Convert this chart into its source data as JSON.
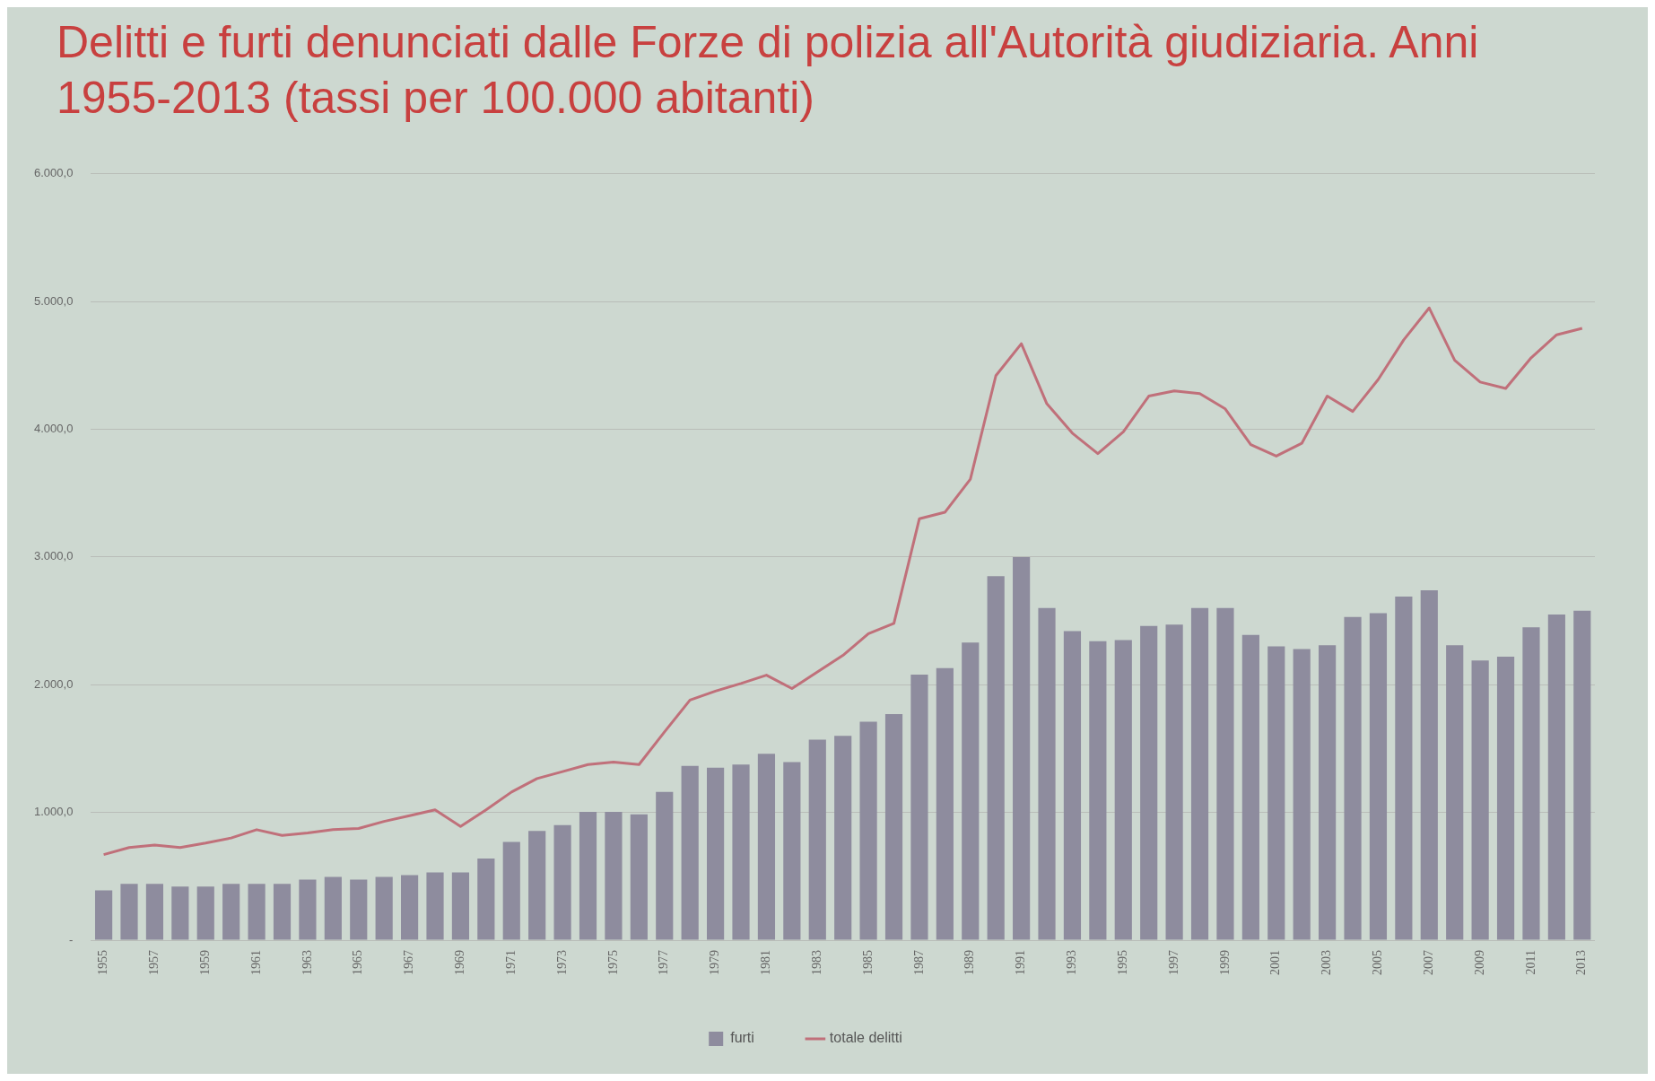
{
  "chart_data": {
    "type": "bar",
    "title": "Delitti e furti denunciati dalle Forze di polizia all'Autorità giudiziaria. Anni 1955-2013 (tassi per 100.000 abitanti)",
    "categories": [
      "1955",
      null,
      "1957",
      null,
      "1959",
      null,
      "1961",
      null,
      "1963",
      null,
      "1965",
      null,
      "1967",
      null,
      "1969",
      null,
      "1971",
      null,
      "1973",
      null,
      "1975",
      null,
      "1977",
      null,
      "1979",
      null,
      "1981",
      null,
      "1983",
      null,
      "1985",
      null,
      "1987",
      null,
      "1989",
      null,
      "1991",
      null,
      "1993",
      null,
      "1995",
      null,
      "1997",
      null,
      "1999",
      null,
      "2001",
      null,
      "2003",
      null,
      "2005",
      null,
      "2007",
      null,
      "2009",
      null,
      "2011",
      null,
      "2013"
    ],
    "series": [
      {
        "name": "furti",
        "color": "#8e8c9e",
        "values": [
          390,
          440,
          440,
          420,
          420,
          440,
          440,
          440,
          475,
          495,
          475,
          495,
          510,
          530,
          530,
          640,
          770,
          855,
          900,
          1005,
          1005,
          985,
          1160,
          1365,
          1350,
          1375,
          1460,
          1395,
          1570,
          1600,
          1710,
          1770,
          2080,
          2130,
          2330,
          2850,
          3000,
          2600,
          2420,
          2340,
          2350,
          2460,
          2470,
          2600,
          2600,
          2390,
          2300,
          2280,
          2310,
          2530,
          2560,
          2690,
          2740,
          2310,
          2190,
          2220,
          2450,
          2550,
          2580
        ]
      },
      {
        "name": "totale delitti",
        "type": "line",
        "color": "#c0707a",
        "values": [
          670,
          725,
          745,
          725,
          760,
          800,
          865,
          820,
          840,
          865,
          875,
          930,
          975,
          1020,
          890,
          1020,
          1160,
          1265,
          1320,
          1375,
          1395,
          1375,
          1630,
          1880,
          1950,
          2010,
          2075,
          1970,
          2100,
          2230,
          2400,
          2480,
          3300,
          3350,
          3610,
          4420,
          4670,
          4200,
          3970,
          3810,
          3980,
          4260,
          4300,
          4280,
          4160,
          3880,
          3790,
          3890,
          4260,
          4140,
          4390,
          4700,
          4950,
          4540,
          4370,
          4320,
          4560,
          4740,
          4790
        ]
      }
    ],
    "ylim": [
      0,
      6000
    ],
    "yticks": [
      {
        "value": 0,
        "label": "-"
      },
      {
        "value": 1000,
        "label": "1.000,0"
      },
      {
        "value": 2000,
        "label": "2.000,0"
      },
      {
        "value": 3000,
        "label": "3.000,0"
      },
      {
        "value": 4000,
        "label": "4.000,0"
      },
      {
        "value": 5000,
        "label": "5.000,0"
      },
      {
        "value": 6000,
        "label": "6.000,0"
      }
    ],
    "grid": "y",
    "legend": "bottom",
    "marker": "none"
  }
}
